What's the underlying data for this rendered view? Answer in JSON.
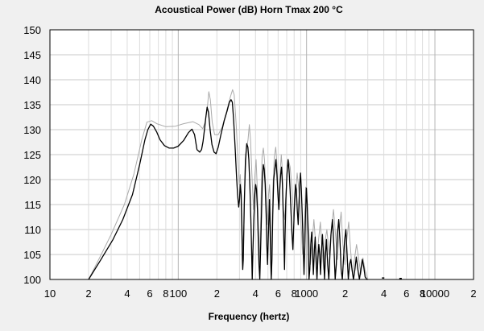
{
  "chart_data": {
    "type": "line",
    "title": "Acoustical Power (dB)    Horn    Tmax 200 °C",
    "xlabel": "Frequency (hertz)",
    "ylabel": "",
    "x_scale": "log",
    "xlim": [
      10,
      20000
    ],
    "ylim": [
      100,
      150
    ],
    "y_ticks": [
      100,
      105,
      110,
      115,
      120,
      125,
      130,
      135,
      140,
      145,
      150
    ],
    "x_ticks": [
      {
        "value": 10,
        "label": "10"
      },
      {
        "value": 20,
        "label": "2"
      },
      {
        "value": 40,
        "label": "4"
      },
      {
        "value": 60,
        "label": "6"
      },
      {
        "value": 80,
        "label": "8"
      },
      {
        "value": 100,
        "label": "100"
      },
      {
        "value": 200,
        "label": "2"
      },
      {
        "value": 400,
        "label": "4"
      },
      {
        "value": 600,
        "label": "6"
      },
      {
        "value": 800,
        "label": "8"
      },
      {
        "value": 1000,
        "label": "1000"
      },
      {
        "value": 2000,
        "label": "2"
      },
      {
        "value": 4000,
        "label": "4"
      },
      {
        "value": 6000,
        "label": "6"
      },
      {
        "value": 8000,
        "label": "8"
      },
      {
        "value": 10000,
        "label": "10000"
      },
      {
        "value": 20000,
        "label": "2"
      }
    ],
    "grid": true,
    "series": [
      {
        "color": "#aaaaaa",
        "points": [
          [
            20,
            100
          ],
          [
            24,
            104
          ],
          [
            30,
            109
          ],
          [
            38,
            115
          ],
          [
            45,
            121
          ],
          [
            52,
            128
          ],
          [
            57,
            131.5
          ],
          [
            62,
            131.8
          ],
          [
            68,
            131.2
          ],
          [
            80,
            130.6
          ],
          [
            95,
            130.7
          ],
          [
            110,
            131.2
          ],
          [
            130,
            131.6
          ],
          [
            145,
            131
          ],
          [
            155,
            130.2
          ],
          [
            162,
            131.5
          ],
          [
            168,
            134
          ],
          [
            173,
            137.6
          ],
          [
            178,
            136
          ],
          [
            184,
            131.5
          ],
          [
            192,
            129
          ],
          [
            205,
            129
          ],
          [
            220,
            130.5
          ],
          [
            237,
            133.5
          ],
          [
            255,
            136.6
          ],
          [
            265,
            138
          ],
          [
            273,
            137
          ],
          [
            283,
            131
          ],
          [
            292,
            124
          ],
          [
            299,
            119
          ],
          [
            304,
            121
          ],
          [
            310,
            117
          ],
          [
            316,
            109
          ],
          [
            322,
            106
          ],
          [
            330,
            118
          ],
          [
            340,
            126
          ],
          [
            350,
            128
          ],
          [
            358,
            131
          ],
          [
            366,
            128
          ],
          [
            375,
            121
          ],
          [
            386,
            114
          ],
          [
            396,
            121
          ],
          [
            404,
            124
          ],
          [
            412,
            119
          ],
          [
            422,
            110
          ],
          [
            431,
            103
          ],
          [
            440,
            114
          ],
          [
            450,
            124.5
          ],
          [
            460,
            126.3
          ],
          [
            470,
            124
          ],
          [
            482,
            118
          ],
          [
            494,
            111
          ],
          [
            506,
            117
          ],
          [
            515,
            119
          ],
          [
            524,
            113
          ],
          [
            534,
            101
          ],
          [
            546,
            118
          ],
          [
            560,
            124.5
          ],
          [
            575,
            126.5
          ],
          [
            588,
            123
          ],
          [
            600,
            118
          ],
          [
            612,
            116
          ],
          [
            624,
            122
          ],
          [
            635,
            125
          ],
          [
            646,
            122
          ],
          [
            660,
            114
          ],
          [
            676,
            112
          ],
          [
            700,
            120
          ],
          [
            720,
            124
          ],
          [
            745,
            122.5
          ],
          [
            770,
            118
          ],
          [
            795,
            112
          ],
          [
            820,
            117
          ],
          [
            845,
            121.3
          ],
          [
            870,
            118
          ],
          [
            900,
            113
          ],
          [
            930,
            105
          ],
          [
            955,
            109
          ],
          [
            985,
            118.5
          ],
          [
            1010,
            115
          ],
          [
            1040,
            110
          ],
          [
            1070,
            103
          ],
          [
            1110,
            108
          ],
          [
            1140,
            112
          ],
          [
            1170,
            108
          ],
          [
            1200,
            103
          ],
          [
            1240,
            108
          ],
          [
            1280,
            111.5
          ],
          [
            1320,
            106
          ],
          [
            1360,
            102
          ],
          [
            1400,
            108
          ],
          [
            1440,
            110
          ],
          [
            1500,
            105
          ],
          [
            1560,
            110
          ],
          [
            1620,
            114
          ],
          [
            1680,
            109
          ],
          [
            1740,
            104
          ],
          [
            1800,
            110
          ],
          [
            1860,
            113.5
          ],
          [
            1920,
            107
          ],
          [
            1990,
            103
          ],
          [
            2060,
            108
          ],
          [
            2130,
            111.5
          ],
          [
            2200,
            106
          ],
          [
            2280,
            101
          ],
          [
            2360,
            104
          ],
          [
            2450,
            107
          ],
          [
            2550,
            104
          ],
          [
            2650,
            101
          ],
          [
            2750,
            104.3
          ],
          [
            2850,
            102
          ],
          [
            3000,
            100
          ]
        ]
      },
      {
        "color": "#000000",
        "points": [
          [
            20,
            100
          ],
          [
            25,
            104
          ],
          [
            31,
            108
          ],
          [
            37,
            112
          ],
          [
            44,
            117
          ],
          [
            50,
            123
          ],
          [
            55,
            128
          ],
          [
            58,
            130
          ],
          [
            61,
            131.1
          ],
          [
            64,
            130.7
          ],
          [
            68,
            129.5
          ],
          [
            72,
            128
          ],
          [
            78,
            126.8
          ],
          [
            85,
            126.3
          ],
          [
            92,
            126.3
          ],
          [
            100,
            126.7
          ],
          [
            110,
            127.8
          ],
          [
            120,
            129.4
          ],
          [
            128,
            130.1
          ],
          [
            134,
            129
          ],
          [
            140,
            126
          ],
          [
            147,
            125.5
          ],
          [
            152,
            126
          ],
          [
            156,
            127.6
          ],
          [
            160,
            130
          ],
          [
            164,
            132.5
          ],
          [
            168,
            134.5
          ],
          [
            172,
            133.5
          ],
          [
            177,
            130
          ],
          [
            183,
            127
          ],
          [
            190,
            125.5
          ],
          [
            197,
            125.2
          ],
          [
            205,
            126.5
          ],
          [
            215,
            129
          ],
          [
            228,
            131.8
          ],
          [
            240,
            133.7
          ],
          [
            250,
            135.5
          ],
          [
            258,
            136
          ],
          [
            264,
            135.5
          ],
          [
            270,
            132
          ],
          [
            278,
            126
          ],
          [
            284,
            121
          ],
          [
            290,
            117
          ],
          [
            296,
            114.5
          ],
          [
            300,
            116
          ],
          [
            304,
            119
          ],
          [
            309,
            117
          ],
          [
            313,
            110
          ],
          [
            316,
            104
          ],
          [
            318,
            102
          ],
          [
            321,
            104
          ],
          [
            327,
            115
          ],
          [
            334,
            124
          ],
          [
            342,
            127.2
          ],
          [
            349,
            126.5
          ],
          [
            355,
            124
          ],
          [
            362,
            118
          ],
          [
            368,
            112
          ],
          [
            373,
            106
          ],
          [
            377,
            100
          ],
          [
            382,
            106
          ],
          [
            388,
            112
          ],
          [
            395,
            117
          ],
          [
            401,
            119
          ],
          [
            407,
            118
          ],
          [
            414,
            114
          ],
          [
            420,
            108
          ],
          [
            426,
            103
          ],
          [
            432,
            100
          ],
          [
            438,
            106
          ],
          [
            445,
            113
          ],
          [
            452,
            120
          ],
          [
            460,
            123
          ],
          [
            468,
            122
          ],
          [
            476,
            119
          ],
          [
            484,
            113
          ],
          [
            490,
            107
          ],
          [
            496,
            103
          ],
          [
            503,
            108
          ],
          [
            509,
            113
          ],
          [
            514,
            116
          ],
          [
            519,
            111
          ],
          [
            524,
            105
          ],
          [
            530,
            100
          ],
          [
            537,
            104
          ],
          [
            545,
            113
          ],
          [
            555,
            120
          ],
          [
            565,
            122
          ],
          [
            577,
            124
          ],
          [
            588,
            121
          ],
          [
            598,
            117
          ],
          [
            608,
            114
          ],
          [
            618,
            118
          ],
          [
            628,
            121
          ],
          [
            638,
            122.5
          ],
          [
            648,
            119
          ],
          [
            658,
            113
          ],
          [
            666,
            107
          ],
          [
            673,
            102
          ],
          [
            680,
            109
          ],
          [
            690,
            116
          ],
          [
            703,
            121
          ],
          [
            717,
            124
          ],
          [
            730,
            122
          ],
          [
            744,
            118
          ],
          [
            758,
            113
          ],
          [
            770,
            109
          ],
          [
            782,
            106
          ],
          [
            795,
            111
          ],
          [
            808,
            116
          ],
          [
            820,
            119
          ],
          [
            833,
            118
          ],
          [
            846,
            114
          ],
          [
            860,
            111
          ],
          [
            872,
            115
          ],
          [
            884,
            119
          ],
          [
            897,
            121.3
          ],
          [
            910,
            118
          ],
          [
            925,
            113
          ],
          [
            940,
            107
          ],
          [
            955,
            101
          ],
          [
            968,
            106
          ],
          [
            982,
            113
          ],
          [
            997,
            118.3
          ],
          [
            1012,
            115
          ],
          [
            1028,
            109
          ],
          [
            1045,
            100
          ],
          [
            1060,
            102
          ],
          [
            1078,
            107
          ],
          [
            1095,
            109.5
          ],
          [
            1112,
            106
          ],
          [
            1130,
            101
          ],
          [
            1150,
            106
          ],
          [
            1168,
            108.5
          ],
          [
            1185,
            104
          ],
          [
            1205,
            100
          ],
          [
            1225,
            104
          ],
          [
            1245,
            107
          ],
          [
            1265,
            105
          ],
          [
            1285,
            101
          ],
          [
            1305,
            105.5
          ],
          [
            1330,
            109
          ],
          [
            1355,
            105
          ],
          [
            1380,
            100
          ],
          [
            1405,
            105
          ],
          [
            1430,
            108
          ],
          [
            1460,
            103
          ],
          [
            1490,
            100
          ],
          [
            1520,
            105
          ],
          [
            1550,
            109
          ],
          [
            1590,
            112
          ],
          [
            1630,
            107
          ],
          [
            1670,
            100
          ],
          [
            1705,
            103
          ],
          [
            1740,
            109
          ],
          [
            1780,
            112
          ],
          [
            1820,
            108
          ],
          [
            1860,
            102
          ],
          [
            1900,
            100
          ],
          [
            1940,
            104
          ],
          [
            1980,
            108
          ],
          [
            2025,
            110
          ],
          [
            2070,
            105
          ],
          [
            2115,
            100
          ],
          [
            2165,
            103
          ],
          [
            2210,
            104
          ],
          [
            2260,
            102
          ],
          [
            2320,
            100
          ],
          [
            2380,
            102
          ],
          [
            2440,
            104.5
          ],
          [
            2510,
            102
          ],
          [
            2580,
            100
          ],
          [
            2650,
            102
          ],
          [
            2720,
            104
          ],
          [
            2790,
            102.5
          ],
          [
            2860,
            100.5
          ],
          [
            2950,
            100
          ],
          [
            3000,
            100
          ]
        ]
      }
    ],
    "extra_marks": [
      [
        3950,
        100.3
      ],
      [
        5400,
        100.2
      ]
    ]
  }
}
